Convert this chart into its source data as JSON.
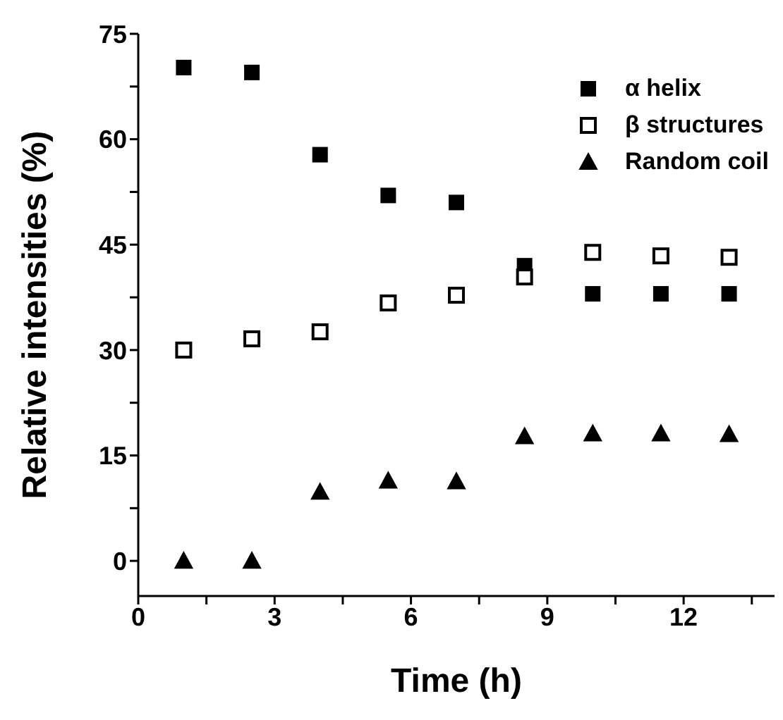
{
  "chart_data": {
    "type": "scatter",
    "xlabel": "Time (h)",
    "ylabel": "Relative intensities (%)",
    "x": [
      1,
      2.5,
      4,
      5.5,
      7,
      8.5,
      10,
      11.5,
      13
    ],
    "xlim": [
      0,
      14
    ],
    "xticks": [
      0,
      {
        "value": 1.5,
        "label": null
      },
      3,
      {
        "value": 4.5,
        "label": null
      },
      6,
      {
        "value": 7.5,
        "label": null
      },
      9,
      {
        "value": 10.5,
        "label": null
      },
      12,
      {
        "value": 13.5,
        "label": null
      }
    ],
    "ylim": [
      -5,
      75
    ],
    "yticks": [
      0,
      {
        "value": 7.5,
        "label": null
      },
      15,
      {
        "value": 22.5,
        "label": null
      },
      30,
      {
        "value": 37.5,
        "label": null
      },
      45,
      {
        "value": 52.5,
        "label": null
      },
      60,
      {
        "value": 67.5,
        "label": null
      },
      75
    ],
    "grid": false,
    "legend": "top right",
    "series": [
      {
        "name": "α helix",
        "color": "#000000",
        "marker": "square",
        "values": [
          70.2,
          69.5,
          57.8,
          52,
          51,
          42,
          38,
          38,
          38
        ]
      },
      {
        "name": "β  structures",
        "color": "#000000",
        "marker": "square-open",
        "values": [
          30,
          31.6,
          32.6,
          36.7,
          37.8,
          40.4,
          43.9,
          43.4,
          43.2
        ]
      },
      {
        "name": "Random coil",
        "color": "#000000",
        "marker": "triangle",
        "values": [
          0,
          0,
          9.8,
          11.4,
          11.3,
          17.7,
          18.1,
          18.1,
          18
        ]
      }
    ]
  }
}
